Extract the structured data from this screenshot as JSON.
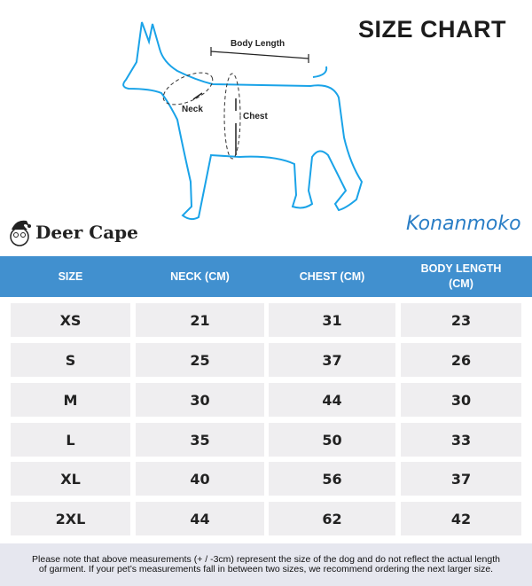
{
  "title": "SIZE CHART",
  "diagram": {
    "body_length": "Body Length",
    "neck": "Neck",
    "chest": "Chest",
    "outline_color": "#1aa3e8"
  },
  "brand": {
    "name": "Deer Cape",
    "logo_text": "Konanmoko"
  },
  "table": {
    "header_color": "#4190cf",
    "headers": [
      "SIZE",
      "NECK (CM)",
      "CHEST (CM)",
      "BODY LENGTH (CM)"
    ],
    "rows": [
      [
        "XS",
        "21",
        "31",
        "23"
      ],
      [
        "S",
        "25",
        "37",
        "26"
      ],
      [
        "M",
        "30",
        "44",
        "30"
      ],
      [
        "L",
        "35",
        "50",
        "33"
      ],
      [
        "XL",
        "40",
        "56",
        "37"
      ],
      [
        "2XL",
        "44",
        "62",
        "42"
      ]
    ]
  },
  "note": "Please note that above measurements (+ / -3cm) represent the size of the dog and do not reflect the actual length of garment.  If your pet’s measurements fall in between two sizes, we recommend ordering the next larger size."
}
